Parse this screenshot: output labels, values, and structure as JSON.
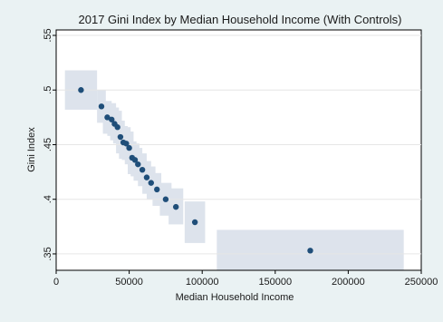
{
  "chart_data": {
    "type": "scatter",
    "title": "2017 Gini Index by Median Household Income (With Controls)",
    "xlabel": "Median Household Income",
    "ylabel": "Gini Index",
    "xlim": [
      0,
      250000
    ],
    "ylim": [
      0.335,
      0.555
    ],
    "x_ticks": [
      0,
      50000,
      100000,
      150000,
      200000,
      250000
    ],
    "x_tick_labels": [
      "0",
      "50000",
      "100000",
      "150000",
      "200000",
      "250000"
    ],
    "y_ticks": [
      0.35,
      0.4,
      0.45,
      0.5,
      0.55
    ],
    "y_tick_labels": [
      ".35",
      ".4",
      ".45",
      ".5",
      ".55"
    ],
    "grid": "horizontal",
    "legend": "none",
    "marker_color": "#1f4e79",
    "ci_color": "#dde3ec",
    "points": [
      {
        "x": 17000,
        "y": 0.5,
        "x_lo": 6000,
        "x_hi": 28000,
        "y_lo": 0.482,
        "y_hi": 0.518
      },
      {
        "x": 31000,
        "y": 0.485,
        "x_lo": 28000,
        "x_hi": 34000,
        "y_lo": 0.47,
        "y_hi": 0.5
      },
      {
        "x": 35000,
        "y": 0.475,
        "x_lo": 32000,
        "x_hi": 38000,
        "y_lo": 0.46,
        "y_hi": 0.49
      },
      {
        "x": 38000,
        "y": 0.473,
        "x_lo": 35000,
        "x_hi": 41000,
        "y_lo": 0.458,
        "y_hi": 0.488
      },
      {
        "x": 40000,
        "y": 0.469,
        "x_lo": 37000,
        "x_hi": 43000,
        "y_lo": 0.454,
        "y_hi": 0.484
      },
      {
        "x": 42000,
        "y": 0.466,
        "x_lo": 39000,
        "x_hi": 45000,
        "y_lo": 0.451,
        "y_hi": 0.481
      },
      {
        "x": 44000,
        "y": 0.457,
        "x_lo": 41000,
        "x_hi": 47000,
        "y_lo": 0.442,
        "y_hi": 0.472
      },
      {
        "x": 46000,
        "y": 0.452,
        "x_lo": 43000,
        "x_hi": 49000,
        "y_lo": 0.437,
        "y_hi": 0.467
      },
      {
        "x": 48000,
        "y": 0.451,
        "x_lo": 45000,
        "x_hi": 51000,
        "y_lo": 0.436,
        "y_hi": 0.466
      },
      {
        "x": 50000,
        "y": 0.447,
        "x_lo": 47000,
        "x_hi": 53000,
        "y_lo": 0.432,
        "y_hi": 0.462
      },
      {
        "x": 52000,
        "y": 0.438,
        "x_lo": 49000,
        "x_hi": 55000,
        "y_lo": 0.423,
        "y_hi": 0.453
      },
      {
        "x": 54000,
        "y": 0.436,
        "x_lo": 51000,
        "x_hi": 57000,
        "y_lo": 0.421,
        "y_hi": 0.451
      },
      {
        "x": 56000,
        "y": 0.432,
        "x_lo": 53000,
        "x_hi": 59000,
        "y_lo": 0.417,
        "y_hi": 0.447
      },
      {
        "x": 59000,
        "y": 0.427,
        "x_lo": 56000,
        "x_hi": 62000,
        "y_lo": 0.412,
        "y_hi": 0.442
      },
      {
        "x": 62000,
        "y": 0.42,
        "x_lo": 59000,
        "x_hi": 65000,
        "y_lo": 0.405,
        "y_hi": 0.435
      },
      {
        "x": 65000,
        "y": 0.415,
        "x_lo": 62000,
        "x_hi": 68000,
        "y_lo": 0.4,
        "y_hi": 0.43
      },
      {
        "x": 69000,
        "y": 0.409,
        "x_lo": 66000,
        "x_hi": 72000,
        "y_lo": 0.394,
        "y_hi": 0.424
      },
      {
        "x": 75000,
        "y": 0.4,
        "x_lo": 71000,
        "x_hi": 79000,
        "y_lo": 0.385,
        "y_hi": 0.415
      },
      {
        "x": 82000,
        "y": 0.393,
        "x_lo": 77000,
        "x_hi": 87000,
        "y_lo": 0.377,
        "y_hi": 0.41
      },
      {
        "x": 95000,
        "y": 0.379,
        "x_lo": 88000,
        "x_hi": 102000,
        "y_lo": 0.36,
        "y_hi": 0.398
      },
      {
        "x": 174000,
        "y": 0.353,
        "x_lo": 110000,
        "x_hi": 238000,
        "y_lo": 0.335,
        "y_hi": 0.372
      }
    ]
  }
}
